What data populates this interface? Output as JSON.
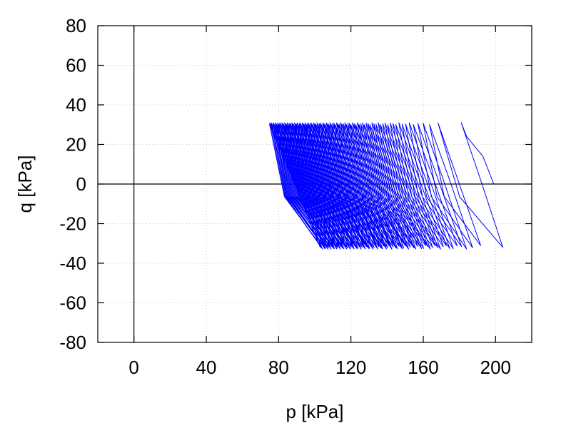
{
  "chart_data": {
    "type": "line",
    "title": "",
    "xlabel": "p [kPa]",
    "ylabel": "q [kPa]",
    "xlim": [
      -20,
      220
    ],
    "ylim": [
      -80,
      80
    ],
    "x_ticks": [
      0,
      40,
      80,
      120,
      160,
      200
    ],
    "y_ticks": [
      80,
      60,
      40,
      20,
      0,
      -20,
      -40,
      -60,
      -80
    ],
    "x_tick_labels": [
      "0",
      "40",
      "80",
      "120",
      "160",
      "200"
    ],
    "y_tick_labels": [
      "80",
      "60",
      "40",
      "20",
      "0",
      "-20",
      "-40",
      "-60",
      "-80"
    ],
    "grid": true,
    "zero_lines": true,
    "legend": "none",
    "series_color": "#0000ff",
    "cycle_shape": {
      "q_peak": 31,
      "q_trough": -32,
      "p_start": 199,
      "p_first_peak": 181,
      "p_first_trough": 204,
      "p_last_peak": 75,
      "p_last_trough": 103,
      "p_band_right_peak": 145,
      "p_band_right_trough": 168,
      "cycles": 110
    },
    "series": [
      {
        "points": [
          [
            199,
            0
          ],
          [
            198,
            14
          ],
          [
            193,
            19
          ],
          [
            181,
            31
          ],
          [
            186,
            22
          ],
          [
            204,
            -30
          ],
          [
            177,
            31
          ],
          [
            199,
            -30
          ],
          [
            173,
            31
          ],
          [
            193,
            -31
          ],
          [
            168,
            31
          ],
          [
            187,
            -31
          ],
          [
            163,
            31
          ],
          [
            182,
            -31
          ],
          [
            158,
            31
          ],
          [
            177,
            -31
          ],
          [
            152,
            31
          ],
          [
            172,
            -31
          ],
          [
            145,
            31
          ],
          [
            103,
            -32
          ],
          [
            75,
            31
          ]
        ]
      }
    ]
  }
}
